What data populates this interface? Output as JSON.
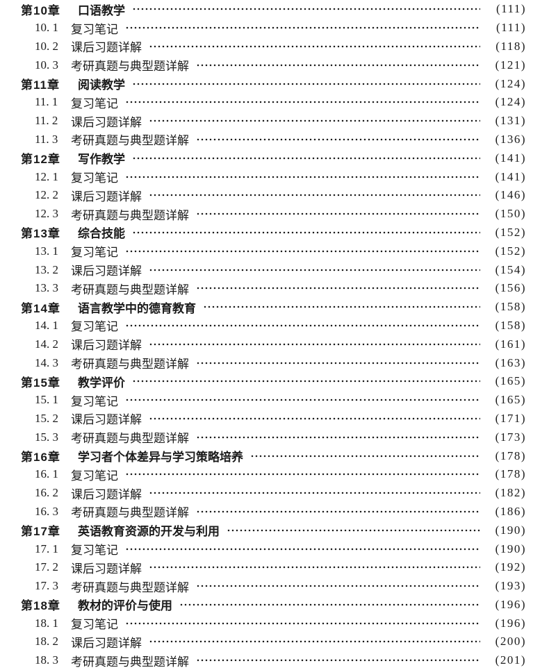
{
  "colors": {
    "text": "#1b1b1b",
    "background": "#ffffff"
  },
  "toc": {
    "chapters": [
      {
        "label": "第10章",
        "title": "口语教学",
        "page": "(111)",
        "sections": [
          {
            "number": "10. 1",
            "title": "复习笔记",
            "page": "(111)"
          },
          {
            "number": "10. 2",
            "title": "课后习题详解",
            "page": "(118)"
          },
          {
            "number": "10. 3",
            "title": "考研真题与典型题详解",
            "page": "(121)"
          }
        ]
      },
      {
        "label": "第11章",
        "title": "阅读教学",
        "page": "(124)",
        "sections": [
          {
            "number": "11. 1",
            "title": "复习笔记",
            "page": "(124)"
          },
          {
            "number": "11. 2",
            "title": "课后习题详解",
            "page": "(131)"
          },
          {
            "number": "11. 3",
            "title": "考研真题与典型题详解",
            "page": "(136)"
          }
        ]
      },
      {
        "label": "第12章",
        "title": "写作教学",
        "page": "(141)",
        "sections": [
          {
            "number": "12. 1",
            "title": "复习笔记",
            "page": "(141)"
          },
          {
            "number": "12. 2",
            "title": "课后习题详解",
            "page": "(146)"
          },
          {
            "number": "12. 3",
            "title": "考研真题与典型题详解",
            "page": "(150)"
          }
        ]
      },
      {
        "label": "第13章",
        "title": "综合技能",
        "page": "(152)",
        "sections": [
          {
            "number": "13. 1",
            "title": "复习笔记",
            "page": "(152)"
          },
          {
            "number": "13. 2",
            "title": "课后习题详解",
            "page": "(154)"
          },
          {
            "number": "13. 3",
            "title": "考研真题与典型题详解",
            "page": "(156)"
          }
        ]
      },
      {
        "label": "第14章",
        "title": "语言教学中的德育教育",
        "page": "(158)",
        "sections": [
          {
            "number": "14. 1",
            "title": "复习笔记",
            "page": "(158)"
          },
          {
            "number": "14. 2",
            "title": "课后习题详解",
            "page": "(161)"
          },
          {
            "number": "14. 3",
            "title": "考研真题与典型题详解",
            "page": "(163)"
          }
        ]
      },
      {
        "label": "第15章",
        "title": "教学评价",
        "page": "(165)",
        "sections": [
          {
            "number": "15. 1",
            "title": "复习笔记",
            "page": "(165)"
          },
          {
            "number": "15. 2",
            "title": "课后习题详解",
            "page": "(171)"
          },
          {
            "number": "15. 3",
            "title": "考研真题与典型题详解",
            "page": "(173)"
          }
        ]
      },
      {
        "label": "第16章",
        "title": "学习者个体差异与学习策略培养",
        "page": "(178)",
        "sections": [
          {
            "number": "16. 1",
            "title": "复习笔记",
            "page": "(178)"
          },
          {
            "number": "16. 2",
            "title": "课后习题详解",
            "page": "(182)"
          },
          {
            "number": "16. 3",
            "title": "考研真题与典型题详解",
            "page": "(186)"
          }
        ]
      },
      {
        "label": "第17章",
        "title": "英语教育资源的开发与利用",
        "page": "(190)",
        "sections": [
          {
            "number": "17. 1",
            "title": "复习笔记",
            "page": "(190)"
          },
          {
            "number": "17. 2",
            "title": "课后习题详解",
            "page": "(192)"
          },
          {
            "number": "17. 3",
            "title": "考研真题与典型题详解",
            "page": "(193)"
          }
        ]
      },
      {
        "label": "第18章",
        "title": "教材的评价与使用",
        "page": "(196)",
        "sections": [
          {
            "number": "18. 1",
            "title": "复习笔记",
            "page": "(196)"
          },
          {
            "number": "18. 2",
            "title": "课后习题详解",
            "page": "(200)"
          },
          {
            "number": "18. 3",
            "title": "考研真题与典型题详解",
            "page": "(201)"
          }
        ]
      }
    ]
  }
}
